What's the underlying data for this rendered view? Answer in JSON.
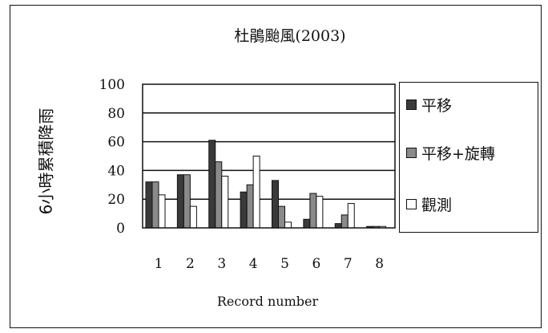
{
  "chart_data": {
    "type": "bar",
    "title": "杜鵑颱風(2003)",
    "xlabel": "Record number",
    "ylabel": "6小時累積降雨",
    "categories": [
      "1",
      "2",
      "3",
      "4",
      "5",
      "6",
      "7",
      "8"
    ],
    "yticks": [
      "100",
      "80",
      "60",
      "40",
      "20",
      "0"
    ],
    "ylim": [
      0,
      100
    ],
    "grid": true,
    "legend_position": "right",
    "series": [
      {
        "name": "平移",
        "color": "#3a3a3a",
        "values": [
          32,
          37,
          61,
          25,
          33,
          6,
          3,
          1
        ]
      },
      {
        "name": "平移+旋轉",
        "color": "#8a8a8a",
        "values": [
          32,
          37,
          46,
          30,
          15,
          24,
          9,
          1
        ]
      },
      {
        "name": "觀測",
        "color": "#ffffff",
        "values": [
          23,
          15,
          36,
          50,
          4,
          22,
          17,
          1
        ]
      }
    ],
    "colors": {
      "plot_background": "#ffffff",
      "border": "#111111"
    }
  }
}
